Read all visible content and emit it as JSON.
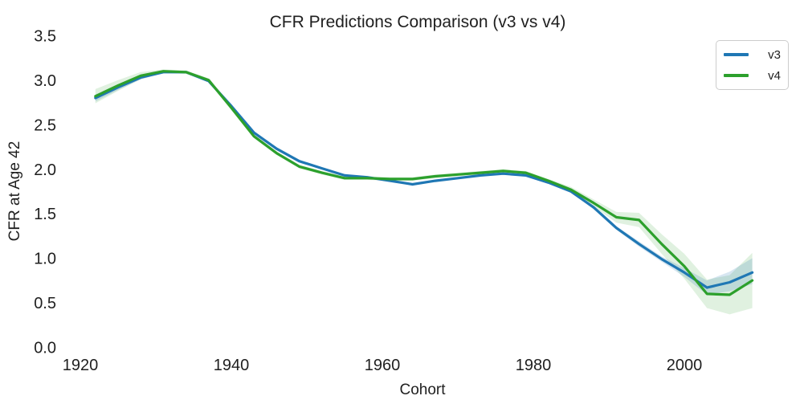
{
  "title": "CFR Predictions Comparison (v3 vs v4)",
  "chart_data": {
    "type": "line",
    "title": "CFR Predictions Comparison (v3 vs v4)",
    "xlabel": "Cohort",
    "ylabel": "CFR at Age 42",
    "xlim": [
      1917,
      2013
    ],
    "ylim": [
      0.0,
      3.5
    ],
    "xticks": [
      1920,
      1940,
      1960,
      1980,
      2000
    ],
    "yticks": [
      0.0,
      0.5,
      1.0,
      1.5,
      2.0,
      2.5,
      3.0,
      3.5
    ],
    "grid": false,
    "spines": false,
    "legend_position": "upper right",
    "background": "#ffffff",
    "text_color": "#1f1f1f",
    "x": [
      1922,
      1925,
      1928,
      1931,
      1934,
      1937,
      1940,
      1943,
      1946,
      1949,
      1952,
      1955,
      1958,
      1961,
      1964,
      1967,
      1970,
      1973,
      1976,
      1979,
      1982,
      1985,
      1988,
      1991,
      1994,
      1997,
      2000,
      2003,
      2006,
      2009
    ],
    "series": [
      {
        "name": "v3",
        "color": "#1f77b4",
        "band_fill": "rgba(31,119,180,0.18)",
        "values": [
          2.81,
          2.93,
          3.04,
          3.1,
          3.1,
          3.0,
          2.72,
          2.42,
          2.24,
          2.1,
          2.02,
          1.94,
          1.92,
          1.88,
          1.84,
          1.88,
          1.91,
          1.94,
          1.96,
          1.94,
          1.86,
          1.76,
          1.58,
          1.35,
          1.17,
          1.0,
          0.85,
          0.68,
          0.74,
          0.85
        ],
        "band_upper": [
          2.85,
          2.96,
          3.06,
          3.11,
          3.11,
          3.01,
          2.73,
          2.43,
          2.25,
          2.11,
          2.03,
          1.95,
          1.93,
          1.89,
          1.85,
          1.89,
          1.92,
          1.95,
          1.97,
          1.95,
          1.87,
          1.77,
          1.6,
          1.37,
          1.2,
          1.03,
          0.9,
          0.76,
          0.86,
          1.01
        ],
        "band_lower": [
          2.77,
          2.9,
          3.02,
          3.09,
          3.09,
          2.99,
          2.71,
          2.41,
          2.23,
          2.09,
          2.01,
          1.93,
          1.91,
          1.87,
          1.83,
          1.87,
          1.9,
          1.93,
          1.95,
          1.93,
          1.85,
          1.75,
          1.56,
          1.33,
          1.14,
          0.97,
          0.8,
          0.6,
          0.64,
          0.72
        ]
      },
      {
        "name": "v4",
        "color": "#2ca02c",
        "band_fill": "rgba(44,160,44,0.15)",
        "values": [
          2.83,
          2.95,
          3.06,
          3.11,
          3.1,
          3.01,
          2.7,
          2.38,
          2.19,
          2.04,
          1.97,
          1.91,
          1.91,
          1.9,
          1.9,
          1.93,
          1.95,
          1.97,
          1.99,
          1.97,
          1.88,
          1.78,
          1.63,
          1.47,
          1.44,
          1.17,
          0.92,
          0.61,
          0.6,
          0.76
        ],
        "band_upper": [
          2.91,
          3.01,
          3.1,
          3.13,
          3.12,
          3.03,
          2.72,
          2.4,
          2.21,
          2.06,
          1.99,
          1.93,
          1.93,
          1.92,
          1.92,
          1.95,
          1.97,
          1.99,
          2.01,
          1.99,
          1.9,
          1.81,
          1.67,
          1.53,
          1.52,
          1.28,
          1.06,
          0.77,
          0.82,
          1.07
        ],
        "band_lower": [
          2.75,
          2.89,
          3.02,
          3.09,
          3.08,
          2.99,
          2.68,
          2.36,
          2.17,
          2.02,
          1.95,
          1.89,
          1.89,
          1.88,
          1.88,
          1.91,
          1.93,
          1.95,
          1.97,
          1.95,
          1.86,
          1.75,
          1.59,
          1.41,
          1.36,
          1.06,
          0.78,
          0.45,
          0.38,
          0.45
        ]
      }
    ]
  },
  "legend": {
    "items": [
      {
        "label": "v3",
        "color": "#1f77b4"
      },
      {
        "label": "v4",
        "color": "#2ca02c"
      }
    ]
  }
}
